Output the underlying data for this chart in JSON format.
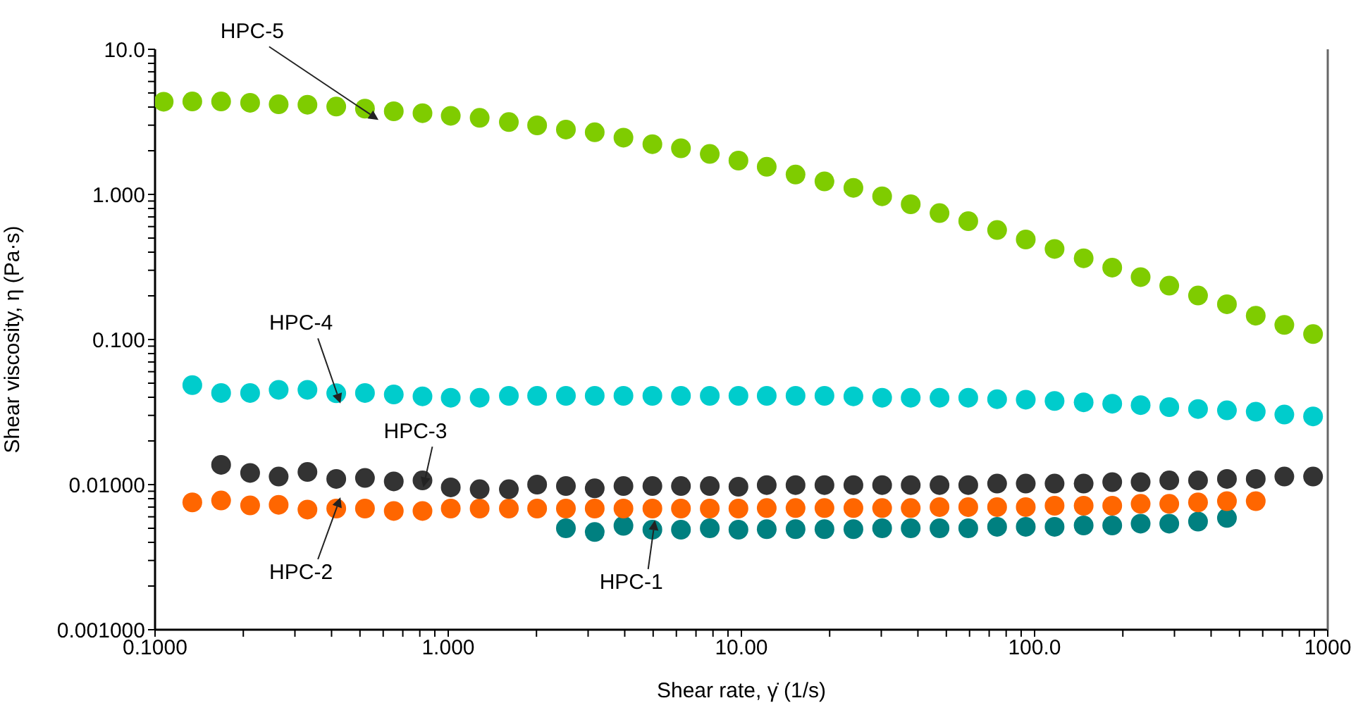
{
  "chart_data": {
    "type": "scatter",
    "xlabel": "Shear rate, γ̇ (1/s)",
    "ylabel": "Shear viscosity, η (Pa·s)",
    "log": "xy",
    "marker": "circle",
    "xlim": [
      0.1,
      1000
    ],
    "xticks": [
      {
        "value": 0.1,
        "label": "0.1000"
      },
      {
        "value": 0.2,
        "label": null
      },
      {
        "value": 0.3,
        "label": null
      },
      {
        "value": 0.4,
        "label": null
      },
      {
        "value": 0.5,
        "label": null
      },
      {
        "value": 0.6,
        "label": null
      },
      {
        "value": 0.7,
        "label": null
      },
      {
        "value": 0.8,
        "label": null
      },
      {
        "value": 0.9,
        "label": null
      },
      {
        "value": 1,
        "label": "1.000"
      },
      {
        "value": 2,
        "label": null
      },
      {
        "value": 3,
        "label": null
      },
      {
        "value": 4,
        "label": null
      },
      {
        "value": 5,
        "label": null
      },
      {
        "value": 6,
        "label": null
      },
      {
        "value": 7,
        "label": null
      },
      {
        "value": 8,
        "label": null
      },
      {
        "value": 9,
        "label": null
      },
      {
        "value": 10,
        "label": "10.00"
      },
      {
        "value": 20,
        "label": null
      },
      {
        "value": 30,
        "label": null
      },
      {
        "value": 40,
        "label": null
      },
      {
        "value": 50,
        "label": null
      },
      {
        "value": 60,
        "label": null
      },
      {
        "value": 70,
        "label": null
      },
      {
        "value": 80,
        "label": null
      },
      {
        "value": 90,
        "label": null
      },
      {
        "value": 100,
        "label": "100.0"
      },
      {
        "value": 200,
        "label": null
      },
      {
        "value": 300,
        "label": null
      },
      {
        "value": 400,
        "label": null
      },
      {
        "value": 500,
        "label": null
      },
      {
        "value": 600,
        "label": null
      },
      {
        "value": 700,
        "label": null
      },
      {
        "value": 800,
        "label": null
      },
      {
        "value": 900,
        "label": null
      },
      1000
    ],
    "ylim": [
      0.001,
      10
    ],
    "yticks": [
      {
        "value": 0.001,
        "label": "0.001000"
      },
      {
        "value": 0.002,
        "label": null
      },
      {
        "value": 0.003,
        "label": null
      },
      {
        "value": 0.004,
        "label": null
      },
      {
        "value": 0.005,
        "label": null
      },
      {
        "value": 0.006,
        "label": null
      },
      {
        "value": 0.007,
        "label": null
      },
      {
        "value": 0.008,
        "label": null
      },
      {
        "value": 0.009,
        "label": null
      },
      {
        "value": 0.01,
        "label": "0.01000"
      },
      {
        "value": 0.02,
        "label": null
      },
      {
        "value": 0.03,
        "label": null
      },
      {
        "value": 0.04,
        "label": null
      },
      {
        "value": 0.05,
        "label": null
      },
      {
        "value": 0.06,
        "label": null
      },
      {
        "value": 0.07,
        "label": null
      },
      {
        "value": 0.08,
        "label": null
      },
      {
        "value": 0.09,
        "label": null
      },
      {
        "value": 0.1,
        "label": "0.100"
      },
      {
        "value": 0.2,
        "label": null
      },
      {
        "value": 0.3,
        "label": null
      },
      {
        "value": 0.4,
        "label": null
      },
      {
        "value": 0.5,
        "label": null
      },
      {
        "value": 0.6,
        "label": null
      },
      {
        "value": 0.7,
        "label": null
      },
      {
        "value": 0.8,
        "label": null
      },
      {
        "value": 0.9,
        "label": null
      },
      {
        "value": 1,
        "label": "1.000"
      },
      {
        "value": 2,
        "label": null
      },
      {
        "value": 3,
        "label": null
      },
      {
        "value": 4,
        "label": null
      },
      {
        "value": 5,
        "label": null
      },
      {
        "value": 6,
        "label": null
      },
      {
        "value": 7,
        "label": null
      },
      {
        "value": 8,
        "label": null
      },
      {
        "value": 9,
        "label": null
      },
      {
        "value": 10,
        "label": "10.0"
      }
    ],
    "series": [
      {
        "color": "#008080",
        "x": [
          2.52,
          3.16,
          3.96,
          4.97,
          6.22,
          7.8,
          9.77,
          12.2,
          15.3,
          19.2,
          24.1,
          30.2,
          37.8,
          47.4,
          59.4,
          74.5,
          93.3,
          117,
          147,
          184,
          230,
          288,
          361,
          453
        ],
        "values": [
          0.005,
          0.00471,
          0.0052,
          0.00489,
          0.00489,
          0.005,
          0.00489,
          0.00493,
          0.00493,
          0.00493,
          0.00493,
          0.005,
          0.005,
          0.005,
          0.005,
          0.00512,
          0.00512,
          0.00512,
          0.00523,
          0.00523,
          0.00538,
          0.00538,
          0.00556,
          0.00589
        ]
      },
      {
        "color": "#ff6600",
        "x": [
          0.134,
          0.168,
          0.211,
          0.264,
          0.331,
          0.415,
          0.52,
          0.652,
          0.817,
          1.02,
          1.28,
          1.61,
          2.01,
          2.52,
          3.16,
          3.96,
          4.97,
          6.22,
          7.8,
          9.77,
          12.2,
          15.3,
          19.2,
          24.1,
          30.2,
          37.8,
          47.4,
          59.4,
          74.5,
          93.3,
          117,
          147,
          184,
          230,
          288,
          361,
          453,
          568
        ],
        "values": [
          0.00754,
          0.00777,
          0.00719,
          0.00726,
          0.00673,
          0.00684,
          0.00684,
          0.00658,
          0.00658,
          0.00684,
          0.00684,
          0.00684,
          0.00684,
          0.00684,
          0.00684,
          0.00684,
          0.00684,
          0.00684,
          0.00684,
          0.00684,
          0.00689,
          0.00689,
          0.00689,
          0.00689,
          0.00689,
          0.00689,
          0.007,
          0.007,
          0.007,
          0.007,
          0.00715,
          0.00715,
          0.00715,
          0.00737,
          0.00737,
          0.00754,
          0.00769,
          0.00769
        ]
      },
      {
        "color": "#333333",
        "x": [
          0.168,
          0.211,
          0.264,
          0.331,
          0.415,
          0.52,
          0.652,
          0.817,
          1.02,
          1.28,
          1.61,
          2.01,
          2.52,
          3.16,
          3.96,
          4.97,
          6.22,
          7.8,
          9.77,
          12.2,
          15.3,
          19.2,
          24.1,
          30.2,
          37.8,
          47.4,
          59.4,
          74.5,
          93.3,
          117,
          147,
          184,
          230,
          288,
          361,
          453,
          568,
          711,
          891
        ],
        "values": [
          0.01368,
          0.01204,
          0.01136,
          0.01222,
          0.01094,
          0.01111,
          0.01052,
          0.01068,
          0.00957,
          0.00929,
          0.00929,
          0.01,
          0.00977,
          0.00942,
          0.00977,
          0.00977,
          0.00977,
          0.00977,
          0.00967,
          0.00993,
          0.00993,
          0.00993,
          0.00993,
          0.00993,
          0.00993,
          0.00993,
          0.00993,
          0.01016,
          0.01016,
          0.01016,
          0.01016,
          0.0104,
          0.0104,
          0.01068,
          0.01068,
          0.01094,
          0.01094,
          0.01136,
          0.01136
        ]
      },
      {
        "color": "#00cccc",
        "x": [
          0.134,
          0.168,
          0.211,
          0.264,
          0.331,
          0.415,
          0.52,
          0.652,
          0.817,
          1.02,
          1.28,
          1.61,
          2.01,
          2.52,
          3.16,
          3.96,
          4.97,
          6.22,
          7.8,
          9.77,
          12.2,
          15.3,
          19.2,
          24.1,
          30.2,
          37.8,
          47.4,
          59.4,
          74.5,
          93.3,
          117,
          147,
          184,
          230,
          288,
          361,
          453,
          568,
          711,
          891
        ],
        "values": [
          0.0485,
          0.0428,
          0.0428,
          0.045,
          0.045,
          0.0426,
          0.0428,
          0.0418,
          0.0406,
          0.0397,
          0.0397,
          0.0409,
          0.0409,
          0.0409,
          0.0409,
          0.0409,
          0.0409,
          0.0409,
          0.0409,
          0.0409,
          0.0409,
          0.0409,
          0.0409,
          0.0406,
          0.0397,
          0.0397,
          0.0397,
          0.0397,
          0.0388,
          0.0385,
          0.0377,
          0.0369,
          0.0361,
          0.0353,
          0.0342,
          0.0332,
          0.0325,
          0.0318,
          0.0304,
          0.0295
        ]
      },
      {
        "color": "#7fcc00",
        "x": [
          0.107,
          0.134,
          0.168,
          0.211,
          0.264,
          0.331,
          0.415,
          0.52,
          0.652,
          0.817,
          1.02,
          1.28,
          1.61,
          2.01,
          2.52,
          3.16,
          3.96,
          4.97,
          6.22,
          7.8,
          9.77,
          12.2,
          15.3,
          19.2,
          24.1,
          30.2,
          37.8,
          47.4,
          59.4,
          74.5,
          93.3,
          117,
          147,
          184,
          230,
          288,
          361,
          453,
          568,
          711,
          891
        ],
        "values": [
          4.35,
          4.37,
          4.37,
          4.28,
          4.18,
          4.15,
          4.03,
          3.9,
          3.74,
          3.63,
          3.48,
          3.37,
          3.15,
          2.99,
          2.8,
          2.68,
          2.46,
          2.22,
          2.08,
          1.9,
          1.71,
          1.55,
          1.37,
          1.23,
          1.11,
          0.97,
          0.855,
          0.743,
          0.654,
          0.568,
          0.489,
          0.421,
          0.363,
          0.313,
          0.269,
          0.235,
          0.201,
          0.175,
          0.146,
          0.126,
          0.109
        ]
      }
    ],
    "annotations": [
      {
        "text": "HPC-5",
        "x": 0.52,
        "y": 3.9
      },
      {
        "text": "HPC-4",
        "x": 0.415,
        "y": 0.0426
      },
      {
        "text": "HPC-3",
        "x": 0.817,
        "y": 0.01068
      },
      {
        "text": "HPC-2",
        "x": 0.415,
        "y": 0.00684
      },
      {
        "text": "HPC-1",
        "x": 4.97,
        "y": 0.00489
      }
    ]
  }
}
